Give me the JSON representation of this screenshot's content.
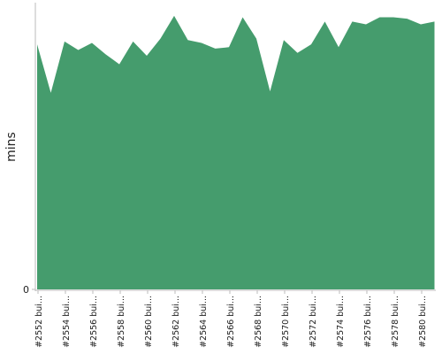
{
  "chart_data": {
    "type": "area",
    "y_label": "mins",
    "color": "#459c6d",
    "categories": [
      "#2552 bui...",
      null,
      "#2554 bui...",
      null,
      "#2556 bui...",
      null,
      "#2558 bui...",
      null,
      "#2560 bui...",
      null,
      "#2562 bui...",
      null,
      "#2564 bui...",
      null,
      "#2566 bui...",
      null,
      "#2568 bui...",
      null,
      "#2570 bui...",
      null,
      "#2572 bui...",
      null,
      "#2574 bui...",
      null,
      "#2576 bui...",
      null,
      "#2578 bui...",
      null,
      "#2580 bui...",
      null
    ],
    "values": [
      17.2,
      13.8,
      17.4,
      16.8,
      17.3,
      16.5,
      15.8,
      17.4,
      16.4,
      17.6,
      19.2,
      17.5,
      17.3,
      16.9,
      17.0,
      19.1,
      17.6,
      13.9,
      17.5,
      16.6,
      17.2,
      18.8,
      17.0,
      18.8,
      18.6,
      19.1,
      19.1,
      19.0,
      18.6,
      18.8
    ],
    "ylim": [
      0,
      20
    ],
    "yticks": [
      0
    ]
  }
}
